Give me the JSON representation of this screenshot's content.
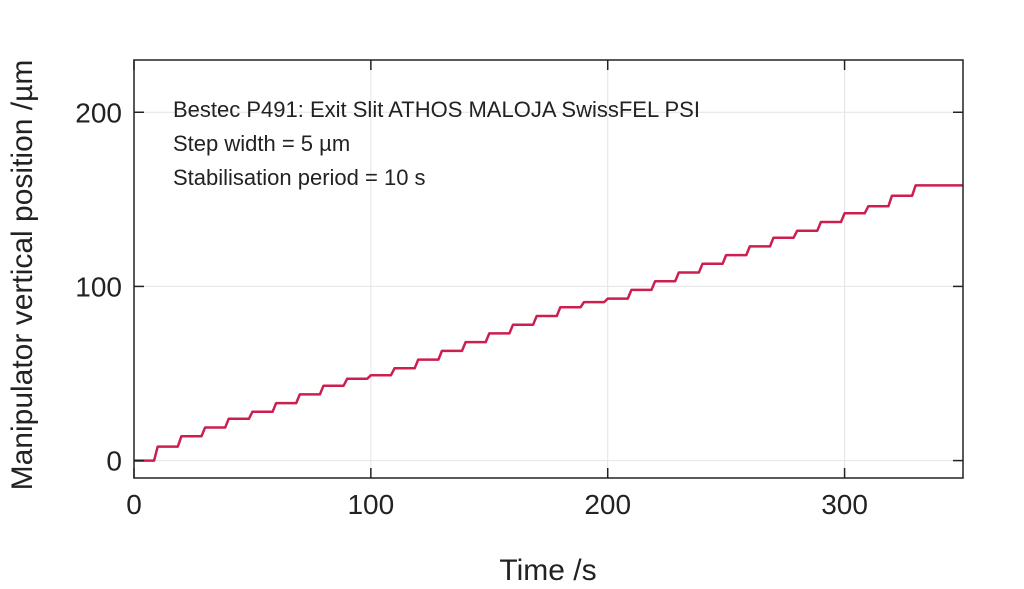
{
  "chart_data": {
    "type": "line",
    "xlabel": "Time /s",
    "ylabel": "Manipulator vertical position /µm",
    "xlim": [
      0,
      350
    ],
    "ylim": [
      -10,
      230
    ],
    "xticks": [
      0,
      100,
      200,
      300
    ],
    "yticks": [
      0,
      100,
      200
    ],
    "grid": true,
    "annotations": [
      "Bestec P491: Exit Slit ATHOS MALOJA SwissFEL PSI",
      "Step width = 5 µm",
      "Stabilisation period = 10 s"
    ],
    "series": [
      {
        "color": "#cc1f4f",
        "x": [
          0,
          10,
          20,
          30,
          40,
          50,
          60,
          70,
          80,
          90,
          100,
          110,
          120,
          130,
          140,
          150,
          160,
          170,
          180,
          190,
          200,
          210,
          220,
          230,
          240,
          250,
          260,
          270,
          280,
          290,
          300,
          310,
          320,
          330,
          350
        ],
        "y": [
          0,
          8,
          14,
          19,
          24,
          28,
          33,
          38,
          43,
          47,
          49,
          53,
          58,
          63,
          68,
          73,
          78,
          83,
          88,
          91,
          93,
          98,
          103,
          108,
          113,
          118,
          123,
          128,
          132,
          137,
          142,
          146,
          152,
          158,
          158
        ]
      }
    ]
  }
}
